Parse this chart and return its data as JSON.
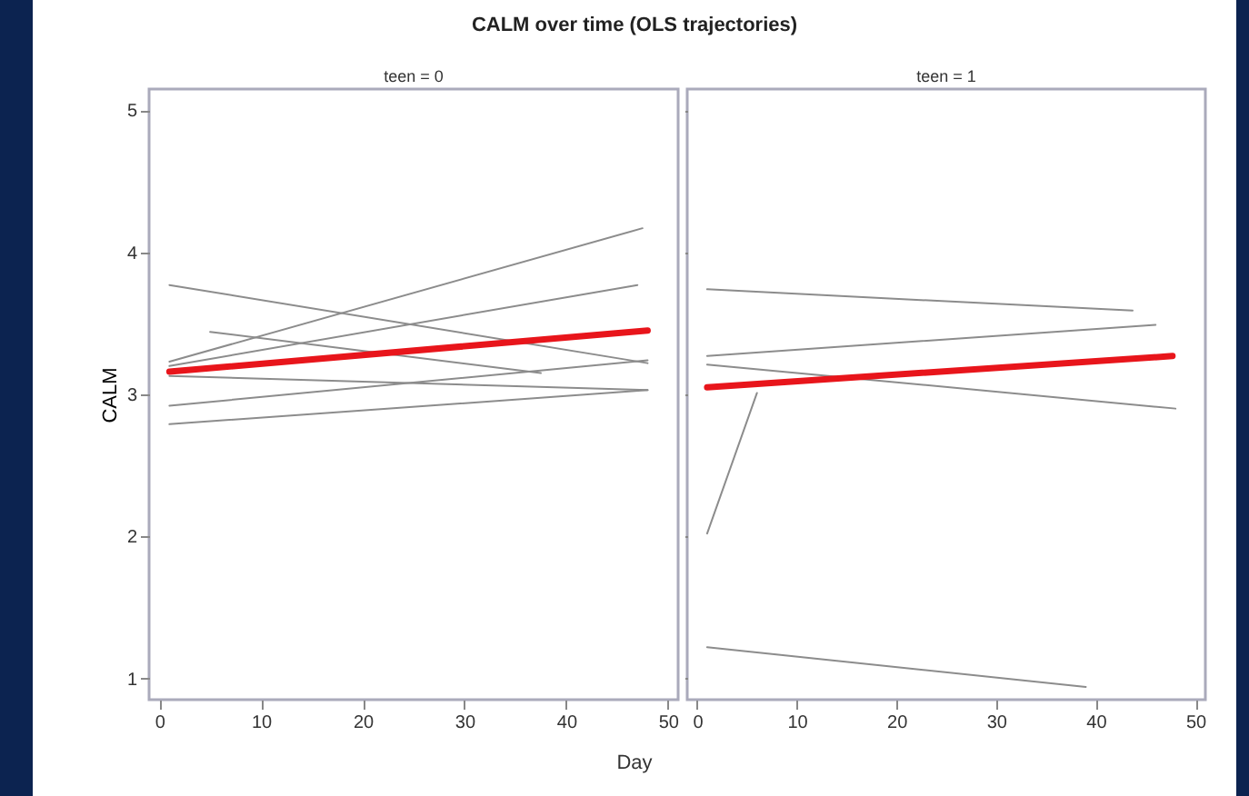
{
  "chart_data": [
    {
      "type": "line",
      "title": "CALM over time (OLS trajectories)",
      "annotations": [
        "teen = 0"
      ],
      "xlabel": "Day",
      "ylabel": "CALM",
      "xlim": [
        -1,
        51
      ],
      "xticks": [
        0,
        10,
        20,
        30,
        40,
        50
      ],
      "ylim": [
        0.85,
        5.15
      ],
      "yticks": [
        1,
        2,
        3,
        4,
        5
      ],
      "grid": false,
      "legend": false,
      "series": [
        {
          "color": "#8c8c8c",
          "x": [
            1,
            47.5
          ],
          "values": [
            3.23,
            4.17
          ]
        },
        {
          "color": "#8c8c8c",
          "x": [
            1,
            47
          ],
          "values": [
            3.2,
            3.77
          ]
        },
        {
          "color": "#8c8c8c",
          "x": [
            1,
            48
          ],
          "values": [
            3.77,
            3.22
          ]
        },
        {
          "color": "#8c8c8c",
          "x": [
            5,
            37.5
          ],
          "values": [
            3.44,
            3.15
          ]
        },
        {
          "color": "#8c8c8c",
          "x": [
            1,
            48
          ],
          "values": [
            3.13,
            3.03
          ]
        },
        {
          "color": "#8c8c8c",
          "x": [
            1,
            48
          ],
          "values": [
            2.92,
            3.24
          ]
        },
        {
          "color": "#8c8c8c",
          "x": [
            1,
            48
          ],
          "values": [
            2.79,
            3.03
          ]
        },
        {
          "color": "#e8151b",
          "x": [
            1,
            48
          ],
          "values": [
            3.16,
            3.45
          ]
        }
      ]
    },
    {
      "type": "line",
      "annotations": [
        "teen = 1"
      ],
      "xlim": [
        -1,
        51
      ],
      "xticks": [
        0,
        10,
        20,
        30,
        40,
        50
      ],
      "ylim": [
        0.85,
        5.15
      ],
      "yticks": [
        1,
        2,
        3,
        4,
        5
      ],
      "tick_labels": "x",
      "grid": false,
      "legend": false,
      "series": [
        {
          "color": "#8c8c8c",
          "x": [
            1,
            43.7
          ],
          "values": [
            3.74,
            3.59
          ]
        },
        {
          "color": "#8c8c8c",
          "x": [
            1,
            46
          ],
          "values": [
            3.27,
            3.49
          ]
        },
        {
          "color": "#8c8c8c",
          "x": [
            1,
            48
          ],
          "values": [
            3.21,
            2.9
          ]
        },
        {
          "color": "#8c8c8c",
          "x": [
            1,
            6
          ],
          "values": [
            2.02,
            3.01
          ]
        },
        {
          "color": "#8c8c8c",
          "x": [
            1,
            39
          ],
          "values": [
            1.22,
            0.94
          ]
        },
        {
          "color": "#e8151b",
          "x": [
            1,
            47.7
          ],
          "values": [
            3.05,
            3.27
          ]
        }
      ]
    }
  ]
}
